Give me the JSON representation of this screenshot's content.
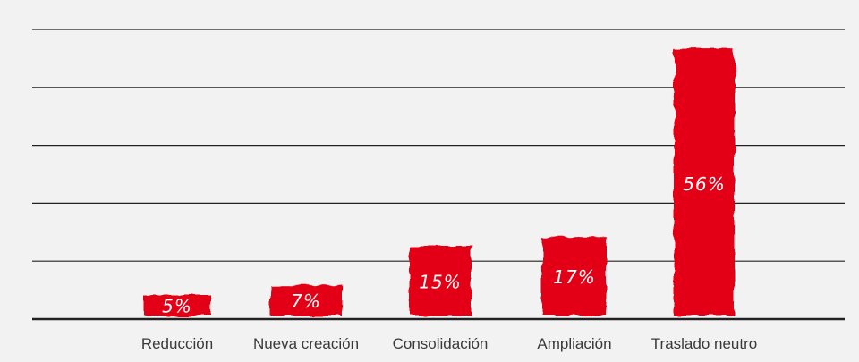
{
  "chart_data": {
    "type": "bar",
    "categories": [
      "Reducción",
      "Nueva creación",
      "Consolidación",
      "Ampliación",
      "Traslado neutro"
    ],
    "values": [
      5,
      7,
      15,
      17,
      56
    ],
    "data_labels": [
      "5%",
      "7%",
      "15%",
      "17%",
      "56%"
    ],
    "title": "",
    "xlabel": "",
    "ylabel": "",
    "ylim": [
      0,
      60
    ],
    "grid": true,
    "legend": "none",
    "colors": {
      "bar": "#e30613",
      "grid": "#222222",
      "background": "#f2f2f2",
      "tick_text": "#3a3a3a",
      "label_text": "#ffffff"
    }
  }
}
